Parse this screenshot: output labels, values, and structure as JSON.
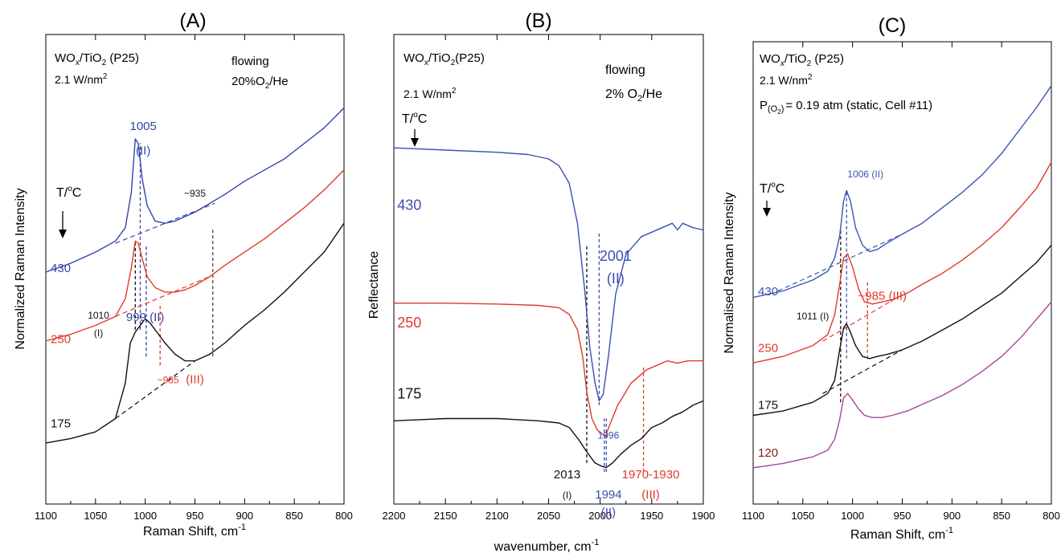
{
  "chart_data": [
    {
      "type": "line",
      "panel_label": "(A)",
      "xlabel": "Raman Shift, cm",
      "xlabel_sup": "-1",
      "ylabel": "Normalized Raman Intensity",
      "xlim": [
        1100,
        800
      ],
      "ylim": [
        0,
        1
      ],
      "x_ticks": [
        "1100",
        "1050",
        "1000",
        "950",
        "900",
        "850",
        "800"
      ],
      "sample_parts": [
        "WO",
        "x",
        "/TiO",
        "2",
        " (P25)"
      ],
      "power_parts": [
        "2.1 W/nm",
        "2"
      ],
      "condition_lines": [
        "flowing",
        "20%O",
        "2",
        "/He"
      ],
      "temp_label": [
        "T/",
        "o",
        "C"
      ],
      "series": [
        {
          "name": "430",
          "color": "#3344aa",
          "x": [
            1100,
            1075,
            1050,
            1030,
            1020,
            1014,
            1010,
            1007,
            1003,
            998,
            990,
            980,
            970,
            960,
            950,
            935,
            920,
            900,
            880,
            860,
            840,
            820,
            800
          ],
          "y": [
            0.49,
            0.51,
            0.535,
            0.56,
            0.59,
            0.67,
            0.79,
            0.78,
            0.7,
            0.64,
            0.605,
            0.6,
            0.605,
            0.615,
            0.625,
            0.645,
            0.665,
            0.695,
            0.72,
            0.745,
            0.78,
            0.815,
            0.86
          ]
        },
        {
          "name": "250",
          "color": "#e03a2a",
          "x": [
            1100,
            1075,
            1050,
            1030,
            1020,
            1014,
            1010,
            1007,
            1003,
            998,
            990,
            980,
            970,
            960,
            950,
            935,
            920,
            900,
            880,
            860,
            840,
            820,
            800
          ],
          "y": [
            0.335,
            0.35,
            0.37,
            0.39,
            0.43,
            0.5,
            0.56,
            0.555,
            0.52,
            0.48,
            0.455,
            0.445,
            0.445,
            0.45,
            0.46,
            0.48,
            0.505,
            0.535,
            0.565,
            0.6,
            0.635,
            0.675,
            0.72
          ]
        },
        {
          "name": "175",
          "color": "#111111",
          "x": [
            1100,
            1075,
            1050,
            1030,
            1020,
            1015,
            1010,
            1005,
            1000,
            995,
            990,
            980,
            970,
            960,
            950,
            935,
            920,
            900,
            880,
            860,
            840,
            820,
            800
          ],
          "y": [
            0.105,
            0.115,
            0.13,
            0.16,
            0.24,
            0.33,
            0.355,
            0.37,
            0.385,
            0.375,
            0.36,
            0.33,
            0.305,
            0.29,
            0.29,
            0.305,
            0.33,
            0.37,
            0.405,
            0.445,
            0.49,
            0.535,
            0.6
          ]
        }
      ],
      "baselines": [
        {
          "x": [
            1030,
            930
          ],
          "y": [
            0.555,
            0.645
          ],
          "color": "#3344aa"
        },
        {
          "x": [
            1030,
            935
          ],
          "y": [
            0.39,
            0.48
          ],
          "color": "#e03a2a"
        },
        {
          "x": [
            1030,
            950
          ],
          "y": [
            0.16,
            0.29
          ],
          "color": "#111111"
        }
      ],
      "vlines": [
        {
          "x": 1005,
          "y": [
            0.36,
            0.78
          ],
          "color": "#3344aa"
        },
        {
          "x": 1010,
          "y": [
            0.36,
            0.56
          ],
          "color": "#111111"
        },
        {
          "x": 999,
          "y": [
            0.3,
            0.55
          ],
          "color": "#3344aa"
        },
        {
          "x": 985,
          "y": [
            0.28,
            0.42
          ],
          "color": "#e03a2a"
        },
        {
          "x": 932,
          "y": [
            0.3,
            0.59
          ],
          "color": "#444444"
        }
      ],
      "annotations": [
        {
          "text": "1005",
          "x": 1002,
          "y": 0.81,
          "color": "#3344aa"
        },
        {
          "text": "(II)",
          "x": 1002,
          "y": 0.755,
          "color": "#3344aa"
        },
        {
          "text": "~935",
          "x": 950,
          "y": 0.66,
          "color": "#111111"
        },
        {
          "text": "1010",
          "x": 1047,
          "y": 0.385,
          "color": "#111111"
        },
        {
          "text": "(I)",
          "x": 1047,
          "y": 0.345,
          "color": "#111111"
        },
        {
          "text": "999 (II)",
          "x": 1000,
          "y": 0.38,
          "color": "#3344aa"
        },
        {
          "text": "~985",
          "x": 977,
          "y": 0.24,
          "color": "#e03a2a"
        },
        {
          "text": "(III)",
          "x": 950,
          "y": 0.24,
          "color": "#e03a2a"
        }
      ],
      "curve_labels": [
        {
          "text": "430",
          "x": 1085,
          "y": 0.49,
          "color": "#3344aa"
        },
        {
          "text": "250",
          "x": 1085,
          "y": 0.33,
          "color": "#e03a2a"
        },
        {
          "text": "175",
          "x": 1085,
          "y": 0.14,
          "color": "#111111"
        }
      ]
    },
    {
      "type": "line",
      "panel_label": "(B)",
      "xlabel": "wavenumber, cm",
      "xlabel_sup": "-1",
      "ylabel": "Reflectance",
      "xlim": [
        2200,
        1900
      ],
      "ylim": [
        0,
        1
      ],
      "x_ticks": [
        "2200",
        "2150",
        "2100",
        "2050",
        "2000",
        "1950",
        "1900"
      ],
      "sample_parts": [
        "WO",
        "x",
        "/TiO",
        "2",
        "(P25)"
      ],
      "power_parts": [
        "2.1 W/nm",
        "2"
      ],
      "condition_lines": [
        "flowing",
        "2% O",
        "2",
        "/He"
      ],
      "temp_label": [
        "T/",
        "o",
        "C"
      ],
      "series": [
        {
          "name": "430",
          "color": "#3a4fb0",
          "x": [
            2200,
            2150,
            2100,
            2070,
            2050,
            2040,
            2030,
            2022,
            2015,
            2010,
            2005,
            2001,
            1997,
            1992,
            1985,
            1975,
            1960,
            1950,
            1940,
            1930,
            1925,
            1920,
            1910,
            1900
          ],
          "y": [
            0.77,
            0.765,
            0.76,
            0.755,
            0.745,
            0.73,
            0.69,
            0.6,
            0.45,
            0.32,
            0.24,
            0.2,
            0.215,
            0.3,
            0.44,
            0.53,
            0.57,
            0.58,
            0.59,
            0.6,
            0.585,
            0.6,
            0.59,
            0.585
          ]
        },
        {
          "name": "250",
          "color": "#e03a2a",
          "x": [
            2200,
            2150,
            2100,
            2060,
            2040,
            2030,
            2022,
            2017,
            2013,
            2008,
            2003,
            1998,
            1995,
            1990,
            1983,
            1970,
            1955,
            1945,
            1935,
            1925,
            1915,
            1900
          ],
          "y": [
            0.42,
            0.42,
            0.418,
            0.415,
            0.41,
            0.395,
            0.36,
            0.3,
            0.22,
            0.16,
            0.135,
            0.125,
            0.12,
            0.15,
            0.19,
            0.24,
            0.27,
            0.28,
            0.29,
            0.285,
            0.29,
            0.29
          ]
        },
        {
          "name": "175",
          "color": "#111111",
          "x": [
            2200,
            2150,
            2100,
            2060,
            2040,
            2030,
            2020,
            2013,
            2005,
            1998,
            1994,
            1988,
            1980,
            1970,
            1960,
            1950,
            1940,
            1930,
            1920,
            1910,
            1900
          ],
          "y": [
            0.155,
            0.16,
            0.16,
            0.155,
            0.15,
            0.14,
            0.11,
            0.085,
            0.06,
            0.052,
            0.05,
            0.06,
            0.08,
            0.1,
            0.115,
            0.14,
            0.15,
            0.165,
            0.175,
            0.19,
            0.2
          ]
        }
      ],
      "baselines": [],
      "vlines": [
        {
          "x": 2013,
          "y": [
            0.06,
            0.55
          ],
          "color": "#111111"
        },
        {
          "x": 2001,
          "y": [
            0.19,
            0.58
          ],
          "color": "#3a4fb0"
        },
        {
          "x": 1996,
          "y": [
            0.04,
            0.16
          ],
          "color": "#3a4fb0"
        },
        {
          "x": 1994,
          "y": [
            0.04,
            0.16
          ],
          "color": "#3a4fb0"
        },
        {
          "x": 1958,
          "y": [
            0.04,
            0.28
          ],
          "color": "#e03a2a"
        }
      ],
      "annotations": [
        {
          "text": "2001",
          "x": 1985,
          "y": 0.515,
          "color": "#3a4fb0"
        },
        {
          "text": "(II)",
          "x": 1985,
          "y": 0.465,
          "color": "#3a4fb0"
        },
        {
          "text": "1996",
          "x": 1992,
          "y": 0.115,
          "color": "#3a4fb0"
        },
        {
          "text": "2013",
          "x": 2032,
          "y": 0.025,
          "color": "#111111"
        },
        {
          "text": "(I)",
          "x": 2032,
          "y": -0.02,
          "color": "#111111"
        },
        {
          "text": "1994",
          "x": 1992,
          "y": -0.02,
          "color": "#3a4fb0"
        },
        {
          "text": "(II)",
          "x": 1992,
          "y": -0.06,
          "color": "#3a4fb0"
        },
        {
          "text": "1970-1930",
          "x": 1951,
          "y": 0.025,
          "color": "#e03a2a"
        },
        {
          "text": "(III)",
          "x": 1951,
          "y": -0.02,
          "color": "#e03a2a"
        }
      ],
      "curve_labels": [
        {
          "text": "430",
          "x": 2185,
          "y": 0.63,
          "color": "#3a4fb0"
        },
        {
          "text": "250",
          "x": 2185,
          "y": 0.365,
          "color": "#e03a2a"
        },
        {
          "text": "175",
          "x": 2185,
          "y": 0.205,
          "color": "#111111"
        }
      ]
    },
    {
      "type": "line",
      "panel_label": "(C)",
      "xlabel": "Raman Shift, cm",
      "xlabel_sup": "-1",
      "ylabel": "Normalised Raman Intensity",
      "xlim": [
        1100,
        800
      ],
      "ylim": [
        0,
        1
      ],
      "x_ticks": [
        "1100",
        "1050",
        "1000",
        "950",
        "900",
        "850",
        "800"
      ],
      "sample_parts": [
        "WO",
        "x",
        "/TiO",
        "2",
        " (P25)"
      ],
      "power_parts": [
        "2.1 W/nm",
        "2"
      ],
      "pressure_parts": [
        "P",
        "(O",
        "2",
        ")",
        "= 0.19 atm (static, Cell #11)"
      ],
      "temp_label": [
        "T/",
        "o",
        "C"
      ],
      "series": [
        {
          "name": "430",
          "color": "#3a56b0",
          "x": [
            1100,
            1070,
            1040,
            1025,
            1018,
            1013,
            1009,
            1006,
            1002,
            997,
            990,
            983,
            975,
            965,
            950,
            930,
            910,
            890,
            870,
            850,
            830,
            815,
            800
          ],
          "y": [
            0.44,
            0.455,
            0.48,
            0.5,
            0.53,
            0.58,
            0.66,
            0.685,
            0.66,
            0.6,
            0.56,
            0.545,
            0.55,
            0.565,
            0.585,
            0.61,
            0.645,
            0.68,
            0.72,
            0.77,
            0.83,
            0.875,
            0.925
          ]
        },
        {
          "name": "250",
          "color": "#e03a2a",
          "x": [
            1100,
            1070,
            1040,
            1025,
            1018,
            1013,
            1009,
            1005,
            1000,
            994,
            988,
            980,
            970,
            960,
            945,
            930,
            910,
            890,
            870,
            850,
            830,
            815,
            800
          ],
          "y": [
            0.29,
            0.305,
            0.33,
            0.355,
            0.4,
            0.47,
            0.53,
            0.54,
            0.51,
            0.46,
            0.43,
            0.425,
            0.43,
            0.435,
            0.45,
            0.47,
            0.495,
            0.525,
            0.56,
            0.6,
            0.65,
            0.69,
            0.75
          ]
        },
        {
          "name": "175",
          "color": "#111111",
          "x": [
            1100,
            1070,
            1040,
            1025,
            1018,
            1013,
            1009,
            1006,
            1002,
            997,
            990,
            983,
            975,
            965,
            950,
            930,
            910,
            890,
            870,
            850,
            830,
            815,
            800
          ],
          "y": [
            0.17,
            0.18,
            0.2,
            0.22,
            0.25,
            0.32,
            0.37,
            0.38,
            0.36,
            0.33,
            0.305,
            0.3,
            0.305,
            0.31,
            0.32,
            0.34,
            0.365,
            0.39,
            0.42,
            0.45,
            0.49,
            0.52,
            0.56
          ]
        },
        {
          "name": "120",
          "color": "#a8449b",
          "x": [
            1100,
            1070,
            1040,
            1025,
            1018,
            1013,
            1009,
            1005,
            1000,
            994,
            988,
            980,
            970,
            960,
            945,
            930,
            910,
            890,
            870,
            850,
            830,
            815,
            800
          ],
          "y": [
            0.05,
            0.06,
            0.075,
            0.09,
            0.115,
            0.16,
            0.21,
            0.22,
            0.205,
            0.185,
            0.17,
            0.165,
            0.165,
            0.17,
            0.18,
            0.195,
            0.215,
            0.24,
            0.27,
            0.305,
            0.35,
            0.39,
            0.43
          ]
        }
      ],
      "baselines": [
        {
          "x": [
            1075,
            950
          ],
          "y": [
            0.455,
            0.585
          ],
          "color": "#3a56b0"
        },
        {
          "x": [
            1030,
            955
          ],
          "y": [
            0.34,
            0.44
          ],
          "color": "#e03a2a"
        },
        {
          "x": [
            1030,
            950
          ],
          "y": [
            0.22,
            0.32
          ],
          "color": "#111111"
        }
      ],
      "vlines": [
        {
          "x": 1006,
          "y": [
            0.3,
            0.685
          ],
          "color": "#3a56b0"
        },
        {
          "x": 1012,
          "y": [
            0.2,
            0.6
          ],
          "color": "#111111"
        },
        {
          "x": 985,
          "y": [
            0.3,
            0.48
          ],
          "color": "#e03a2a"
        }
      ],
      "annotations": [
        {
          "text": "1006 (II)",
          "x": 987,
          "y": 0.715,
          "color": "#3a56b0"
        },
        {
          "text": "1011 (I)",
          "x": 1040,
          "y": 0.39,
          "color": "#111111"
        },
        {
          "text": "~985 (III)",
          "x": 970,
          "y": 0.435,
          "color": "#e03a2a"
        }
      ],
      "curve_labels": [
        {
          "text": "430",
          "x": 1085,
          "y": 0.445,
          "color": "#3a56b0"
        },
        {
          "text": "250",
          "x": 1085,
          "y": 0.315,
          "color": "#e03a2a"
        },
        {
          "text": "175",
          "x": 1085,
          "y": 0.185,
          "color": "#111111"
        },
        {
          "text": "120",
          "x": 1085,
          "y": 0.075,
          "color": "#8b1a1a"
        }
      ]
    }
  ]
}
